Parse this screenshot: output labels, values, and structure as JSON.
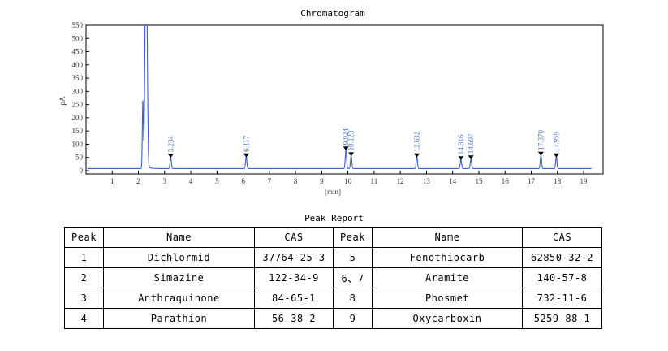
{
  "chart_data": {
    "type": "line",
    "title": "Chromatogram",
    "xlabel": "[min]",
    "ylabel": "pA",
    "xlim": [
      0,
      19.5
    ],
    "ylim": [
      0,
      550
    ],
    "x_ticks": [
      "1",
      "2",
      "3",
      "4",
      "5",
      "6",
      "7",
      "8",
      "9",
      "10",
      "11",
      "12",
      "13",
      "14",
      "15",
      "16",
      "17",
      "18",
      "19"
    ],
    "y_ticks": [
      "0",
      "50",
      "100",
      "150",
      "200",
      "250",
      "300",
      "350",
      "400",
      "450",
      "500",
      "550"
    ],
    "grid": false,
    "series_color": "#3a5fcd",
    "baseline": 8,
    "signal_start": 0.05,
    "signal_end": 19.3,
    "solvent_peaks": [
      {
        "time": 2.17,
        "height": 255,
        "width": 0.02
      },
      {
        "time": 2.27,
        "height": 560,
        "width": 0.03
      },
      {
        "time": 2.32,
        "height": 560,
        "width": 0.03
      }
    ],
    "peaks": [
      {
        "time": 3.234,
        "label": "3.234",
        "height": 42
      },
      {
        "time": 6.117,
        "label": "6.117",
        "height": 44
      },
      {
        "time": 9.924,
        "label": "9.924",
        "height": 70
      },
      {
        "time": 10.123,
        "label": "10.123",
        "height": 48
      },
      {
        "time": 12.632,
        "label": "12.632",
        "height": 44
      },
      {
        "time": 14.316,
        "label": "14.316",
        "height": 33
      },
      {
        "time": 14.697,
        "label": "14.697",
        "height": 36
      },
      {
        "time": 17.37,
        "label": "17.370",
        "height": 50
      },
      {
        "time": 17.959,
        "label": "17.959",
        "height": 44
      }
    ]
  },
  "report": {
    "title": "Peak Report",
    "headers": [
      "Peak",
      "Name",
      "CAS",
      "Peak",
      "Name",
      "CAS"
    ],
    "rows": [
      [
        "1",
        "Dichlormid",
        "37764-25-3",
        "5",
        "Fenothiocarb",
        "62850-32-2"
      ],
      [
        "2",
        "Simazine",
        "122-34-9",
        "6、7",
        "Aramite",
        "140-57-8"
      ],
      [
        "3",
        "Anthraquinone",
        "84-65-1",
        "8",
        "Phosmet",
        "732-11-6"
      ],
      [
        "4",
        "Parathion",
        "56-38-2",
        "9",
        "Oxycarboxin",
        "5259-88-1"
      ]
    ]
  }
}
